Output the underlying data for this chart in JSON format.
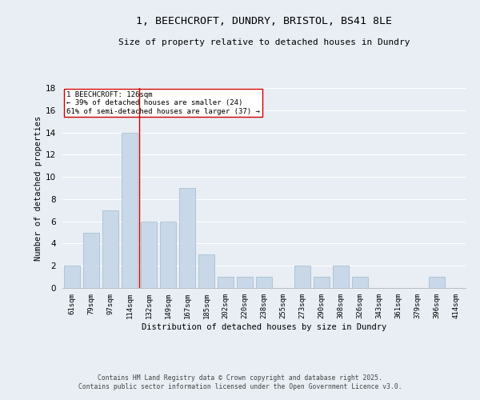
{
  "title_line1": "1, BEECHCROFT, DUNDRY, BRISTOL, BS41 8LE",
  "title_line2": "Size of property relative to detached houses in Dundry",
  "xlabel": "Distribution of detached houses by size in Dundry",
  "ylabel": "Number of detached properties",
  "bins": [
    "61sqm",
    "79sqm",
    "97sqm",
    "114sqm",
    "132sqm",
    "149sqm",
    "167sqm",
    "185sqm",
    "202sqm",
    "220sqm",
    "238sqm",
    "255sqm",
    "273sqm",
    "290sqm",
    "308sqm",
    "326sqm",
    "343sqm",
    "361sqm",
    "379sqm",
    "396sqm",
    "414sqm"
  ],
  "bar_values": [
    2,
    5,
    7,
    14,
    6,
    6,
    9,
    3,
    1,
    1,
    1,
    0,
    2,
    1,
    2,
    1,
    0,
    0,
    0,
    1,
    0
  ],
  "bar_color": "#c8d8e8",
  "bar_edge_color": "#a0b8cc",
  "background_color": "#e8eef4",
  "grid_color": "#ffffff",
  "redline_x": 3.5,
  "annotation_text": "1 BEECHCROFT: 126sqm\n← 39% of detached houses are smaller (24)\n61% of semi-detached houses are larger (37) →",
  "annotation_box_facecolor": "#ffffff",
  "annotation_box_edgecolor": "#cc0000",
  "ylim": [
    0,
    18
  ],
  "yticks": [
    0,
    2,
    4,
    6,
    8,
    10,
    12,
    14,
    16,
    18
  ],
  "footer_line1": "Contains HM Land Registry data © Crown copyright and database right 2025.",
  "footer_line2": "Contains public sector information licensed under the Open Government Licence v3.0."
}
